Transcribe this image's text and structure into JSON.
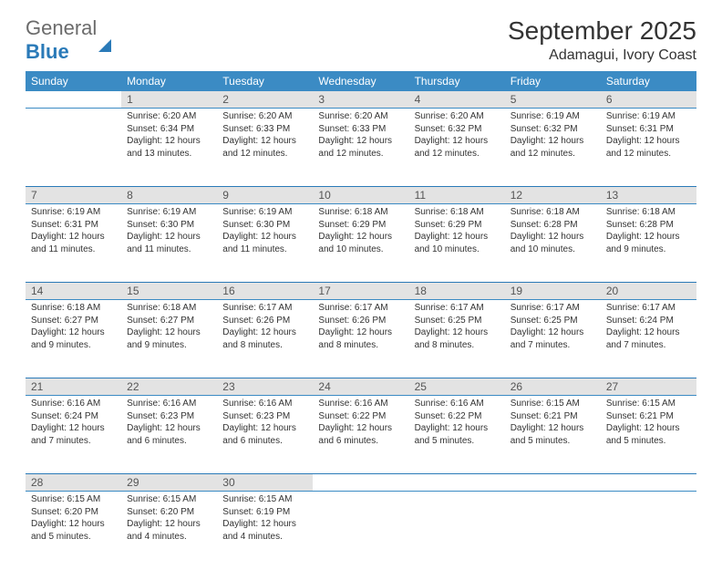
{
  "logo": {
    "word1": "General",
    "word2": "Blue"
  },
  "title": "September 2025",
  "location": "Adamagui, Ivory Coast",
  "colors": {
    "header_bg": "#3b8bc4",
    "header_text": "#ffffff",
    "daynum_bg": "#e3e3e3",
    "rule": "#2a7ab8",
    "text": "#333333",
    "logo_gray": "#6b6b6b",
    "logo_blue": "#2a7ab8"
  },
  "weekdays": [
    "Sunday",
    "Monday",
    "Tuesday",
    "Wednesday",
    "Thursday",
    "Friday",
    "Saturday"
  ],
  "weeks": [
    {
      "nums": [
        "",
        "1",
        "2",
        "3",
        "4",
        "5",
        "6"
      ],
      "cells": [
        null,
        {
          "sunrise": "6:20 AM",
          "sunset": "6:34 PM",
          "daylight": "12 hours and 13 minutes."
        },
        {
          "sunrise": "6:20 AM",
          "sunset": "6:33 PM",
          "daylight": "12 hours and 12 minutes."
        },
        {
          "sunrise": "6:20 AM",
          "sunset": "6:33 PM",
          "daylight": "12 hours and 12 minutes."
        },
        {
          "sunrise": "6:20 AM",
          "sunset": "6:32 PM",
          "daylight": "12 hours and 12 minutes."
        },
        {
          "sunrise": "6:19 AM",
          "sunset": "6:32 PM",
          "daylight": "12 hours and 12 minutes."
        },
        {
          "sunrise": "6:19 AM",
          "sunset": "6:31 PM",
          "daylight": "12 hours and 12 minutes."
        }
      ]
    },
    {
      "nums": [
        "7",
        "8",
        "9",
        "10",
        "11",
        "12",
        "13"
      ],
      "cells": [
        {
          "sunrise": "6:19 AM",
          "sunset": "6:31 PM",
          "daylight": "12 hours and 11 minutes."
        },
        {
          "sunrise": "6:19 AM",
          "sunset": "6:30 PM",
          "daylight": "12 hours and 11 minutes."
        },
        {
          "sunrise": "6:19 AM",
          "sunset": "6:30 PM",
          "daylight": "12 hours and 11 minutes."
        },
        {
          "sunrise": "6:18 AM",
          "sunset": "6:29 PM",
          "daylight": "12 hours and 10 minutes."
        },
        {
          "sunrise": "6:18 AM",
          "sunset": "6:29 PM",
          "daylight": "12 hours and 10 minutes."
        },
        {
          "sunrise": "6:18 AM",
          "sunset": "6:28 PM",
          "daylight": "12 hours and 10 minutes."
        },
        {
          "sunrise": "6:18 AM",
          "sunset": "6:28 PM",
          "daylight": "12 hours and 9 minutes."
        }
      ]
    },
    {
      "nums": [
        "14",
        "15",
        "16",
        "17",
        "18",
        "19",
        "20"
      ],
      "cells": [
        {
          "sunrise": "6:18 AM",
          "sunset": "6:27 PM",
          "daylight": "12 hours and 9 minutes."
        },
        {
          "sunrise": "6:18 AM",
          "sunset": "6:27 PM",
          "daylight": "12 hours and 9 minutes."
        },
        {
          "sunrise": "6:17 AM",
          "sunset": "6:26 PM",
          "daylight": "12 hours and 8 minutes."
        },
        {
          "sunrise": "6:17 AM",
          "sunset": "6:26 PM",
          "daylight": "12 hours and 8 minutes."
        },
        {
          "sunrise": "6:17 AM",
          "sunset": "6:25 PM",
          "daylight": "12 hours and 8 minutes."
        },
        {
          "sunrise": "6:17 AM",
          "sunset": "6:25 PM",
          "daylight": "12 hours and 7 minutes."
        },
        {
          "sunrise": "6:17 AM",
          "sunset": "6:24 PM",
          "daylight": "12 hours and 7 minutes."
        }
      ]
    },
    {
      "nums": [
        "21",
        "22",
        "23",
        "24",
        "25",
        "26",
        "27"
      ],
      "cells": [
        {
          "sunrise": "6:16 AM",
          "sunset": "6:24 PM",
          "daylight": "12 hours and 7 minutes."
        },
        {
          "sunrise": "6:16 AM",
          "sunset": "6:23 PM",
          "daylight": "12 hours and 6 minutes."
        },
        {
          "sunrise": "6:16 AM",
          "sunset": "6:23 PM",
          "daylight": "12 hours and 6 minutes."
        },
        {
          "sunrise": "6:16 AM",
          "sunset": "6:22 PM",
          "daylight": "12 hours and 6 minutes."
        },
        {
          "sunrise": "6:16 AM",
          "sunset": "6:22 PM",
          "daylight": "12 hours and 5 minutes."
        },
        {
          "sunrise": "6:15 AM",
          "sunset": "6:21 PM",
          "daylight": "12 hours and 5 minutes."
        },
        {
          "sunrise": "6:15 AM",
          "sunset": "6:21 PM",
          "daylight": "12 hours and 5 minutes."
        }
      ]
    },
    {
      "nums": [
        "28",
        "29",
        "30",
        "",
        "",
        "",
        ""
      ],
      "cells": [
        {
          "sunrise": "6:15 AM",
          "sunset": "6:20 PM",
          "daylight": "12 hours and 5 minutes."
        },
        {
          "sunrise": "6:15 AM",
          "sunset": "6:20 PM",
          "daylight": "12 hours and 4 minutes."
        },
        {
          "sunrise": "6:15 AM",
          "sunset": "6:19 PM",
          "daylight": "12 hours and 4 minutes."
        },
        null,
        null,
        null,
        null
      ]
    }
  ],
  "labels": {
    "sunrise": "Sunrise:",
    "sunset": "Sunset:",
    "daylight": "Daylight:"
  }
}
